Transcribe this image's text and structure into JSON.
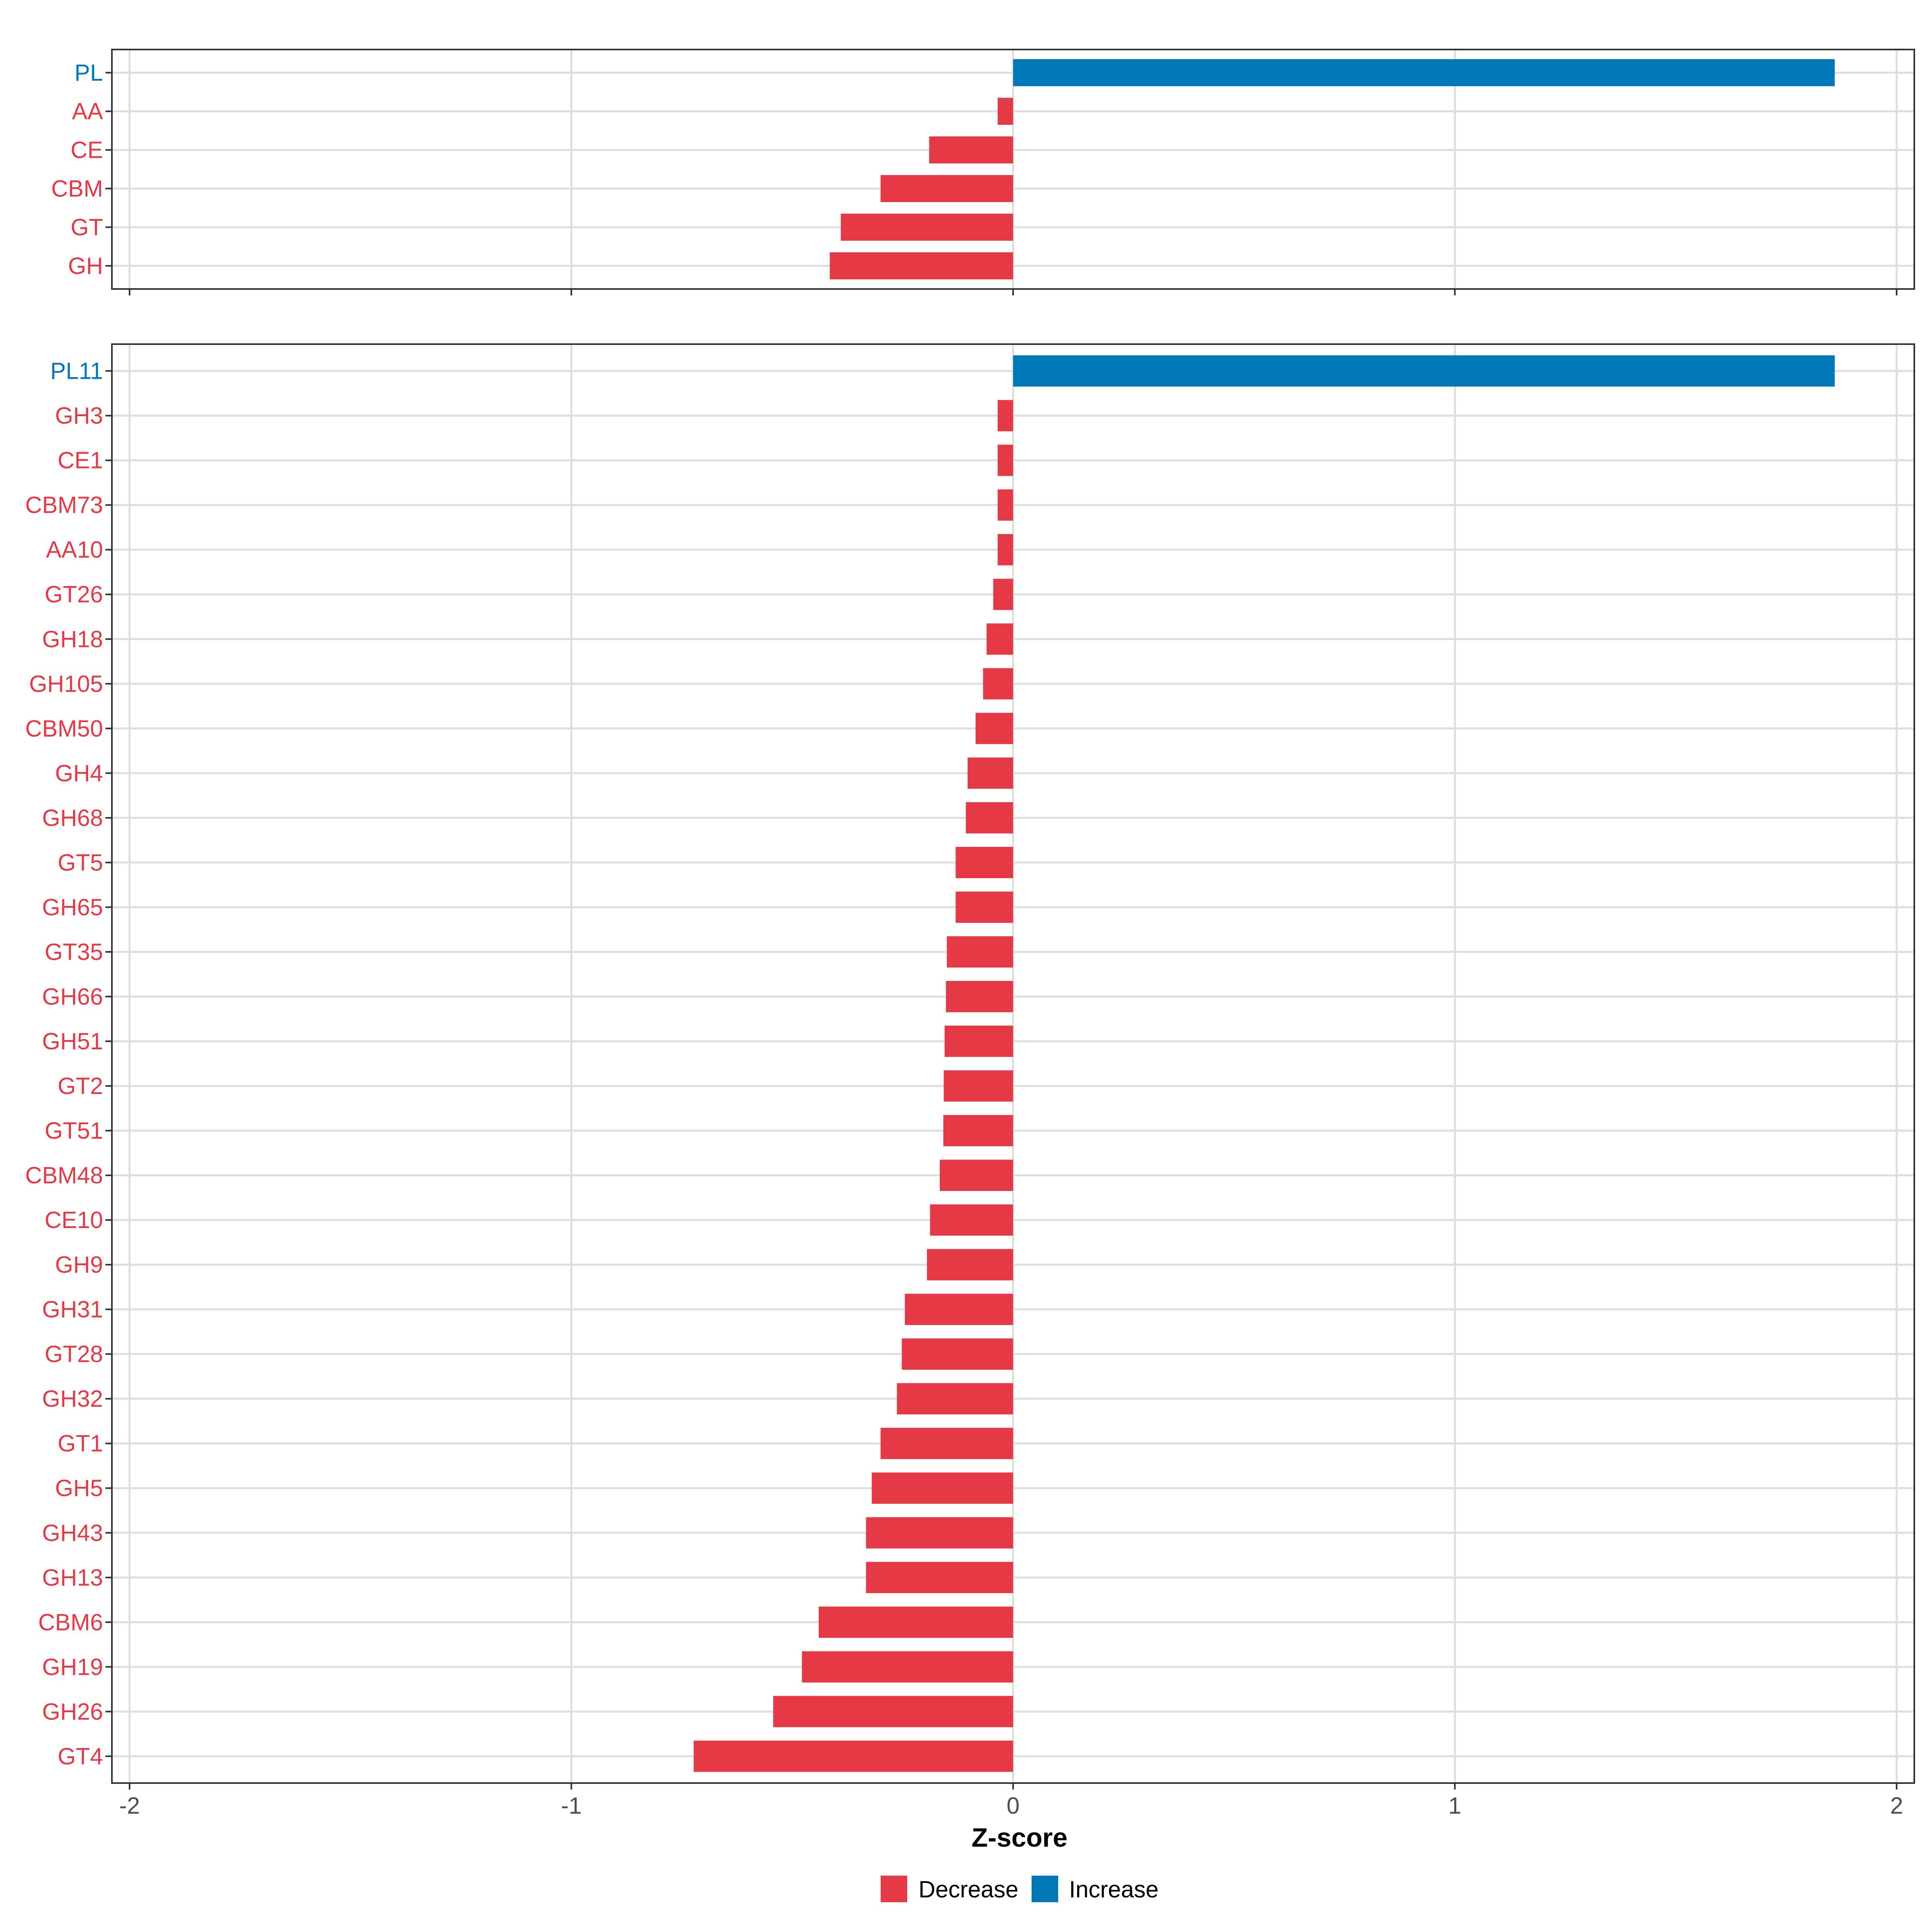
{
  "chart_data": [
    {
      "type": "bar",
      "orientation": "horizontal",
      "panel": "top",
      "categories": [
        "PL",
        "AA",
        "CE",
        "CBM",
        "GT",
        "GH"
      ],
      "values": [
        1.86,
        -0.035,
        -0.19,
        -0.3,
        -0.39,
        -0.415
      ],
      "xlim": [
        -2.04,
        2.04
      ],
      "xticks": [
        -2,
        -1,
        0,
        1,
        2
      ],
      "grid": true
    },
    {
      "type": "bar",
      "orientation": "horizontal",
      "panel": "bottom",
      "categories": [
        "PL11",
        "GH3",
        "CE1",
        "CBM73",
        "AA10",
        "GT26",
        "GH18",
        "GH105",
        "CBM50",
        "GH4",
        "GH68",
        "GT5",
        "GH65",
        "GT35",
        "GH66",
        "GH51",
        "GT2",
        "GT51",
        "CBM48",
        "CE10",
        "GH9",
        "GH31",
        "GT28",
        "GH32",
        "GT1",
        "GH5",
        "GH43",
        "GH13",
        "CBM6",
        "GH19",
        "GH26",
        "GT4"
      ],
      "values": [
        1.86,
        -0.035,
        -0.035,
        -0.035,
        -0.035,
        -0.045,
        -0.06,
        -0.068,
        -0.085,
        -0.103,
        -0.107,
        -0.13,
        -0.13,
        -0.15,
        -0.152,
        -0.155,
        -0.157,
        -0.158,
        -0.166,
        -0.188,
        -0.195,
        -0.245,
        -0.252,
        -0.263,
        -0.3,
        -0.32,
        -0.333,
        -0.333,
        -0.44,
        -0.478,
        -0.543,
        -0.723
      ],
      "xlim": [
        -2.04,
        2.04
      ],
      "xticks": [
        -2,
        -1,
        0,
        1,
        2
      ],
      "xlabel": "Z-score",
      "grid": true
    }
  ],
  "legend": {
    "position": "bottom",
    "items": [
      {
        "label": "Decrease",
        "color": "#E63946"
      },
      {
        "label": "Increase",
        "color": "#0077B6"
      }
    ]
  },
  "colors": {
    "decrease": "#E63946",
    "increase": "#0077B6",
    "grid": "#DEDEDE",
    "axis": "#333333"
  }
}
